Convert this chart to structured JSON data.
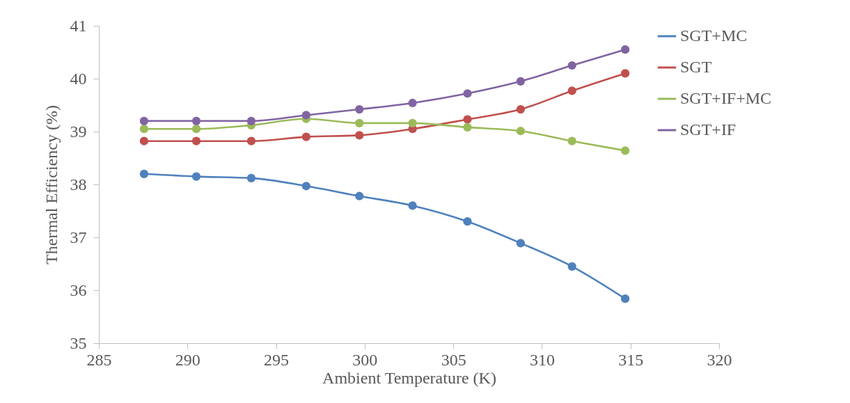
{
  "chart_data": {
    "type": "line",
    "xlabel": "Ambient Temperature (K)",
    "ylabel": "Thermal Efficiency (%)",
    "x": [
      287.55,
      290.5,
      293.6,
      296.7,
      299.7,
      302.7,
      305.8,
      308.8,
      311.7,
      314.7
    ],
    "series": [
      {
        "name": "SGT+MC",
        "color": "#4f81bd",
        "values": [
          38.2,
          38.15,
          38.12,
          37.97,
          37.78,
          37.6,
          37.3,
          36.89,
          36.45,
          35.84
        ]
      },
      {
        "name": "SGT",
        "color": "#c0504d",
        "values": [
          38.82,
          38.82,
          38.82,
          38.9,
          38.93,
          39.05,
          39.23,
          39.42,
          39.77,
          40.1
        ]
      },
      {
        "name": "SGT+IF+MC",
        "color": "#9bbb59",
        "values": [
          39.05,
          39.05,
          39.12,
          39.24,
          39.16,
          39.16,
          39.08,
          39.01,
          38.82,
          38.64
        ]
      },
      {
        "name": "SGT+IF",
        "color": "#8064a2",
        "values": [
          39.2,
          39.2,
          39.2,
          39.31,
          39.42,
          39.54,
          39.72,
          39.95,
          40.25,
          40.55
        ]
      }
    ],
    "xlim": [
      285,
      320
    ],
    "xticks": [
      285,
      290,
      295,
      300,
      305,
      310,
      315,
      320
    ],
    "ylim": [
      35,
      41
    ],
    "yticks": [
      35,
      36,
      37,
      38,
      39,
      40,
      41
    ],
    "grid": false,
    "legend": "right",
    "marker": "circle",
    "line_style": "solid"
  }
}
